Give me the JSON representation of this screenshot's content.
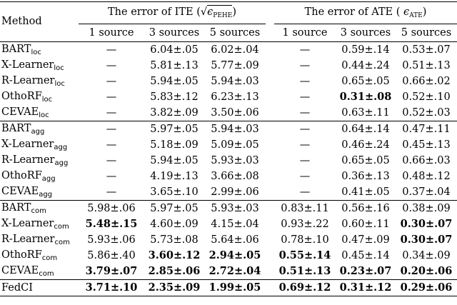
{
  "table": {
    "method_header": "Method",
    "ite_header_prefix": "The error of ITE (",
    "ite_header_sqrt": "√",
    "ite_header_eps": "ϵ",
    "ite_header_sub": "PEHE",
    "ite_header_suffix": ")",
    "ate_header_prefix": "The error of ATE (",
    "ate_header_eps": "ϵ",
    "ate_header_sub": "ATE",
    "ate_header_suffix": ")",
    "subcols": [
      "1 source",
      "3 sources",
      "5 sources",
      "1 source",
      "3 sources",
      "5 sources"
    ],
    "groups": [
      {
        "rows": [
          {
            "name": "BART",
            "sub": "loc",
            "cells": [
              "—",
              "6.04±.05",
              "6.02±.04",
              "—",
              "0.59±.14",
              "0.53±.07"
            ],
            "bold": [
              false,
              false,
              false,
              false,
              false,
              false
            ]
          },
          {
            "name": "X-Learner",
            "sub": "loc",
            "cells": [
              "—",
              "5.81±.13",
              "5.77±.09",
              "—",
              "0.44±.24",
              "0.51±.13"
            ],
            "bold": [
              false,
              false,
              false,
              false,
              false,
              false
            ]
          },
          {
            "name": "R-Learner",
            "sub": "loc",
            "cells": [
              "—",
              "5.94±.05",
              "5.94±.03",
              "—",
              "0.65±.05",
              "0.66±.02"
            ],
            "bold": [
              false,
              false,
              false,
              false,
              false,
              false
            ]
          },
          {
            "name": "OthoRF",
            "sub": "loc",
            "cells": [
              "—",
              "5.83±.12",
              "6.23±.13",
              "—",
              "0.31±.08",
              "0.52±.10"
            ],
            "bold": [
              false,
              false,
              false,
              false,
              true,
              false
            ]
          },
          {
            "name": "CEVAE",
            "sub": "loc",
            "cells": [
              "—",
              "3.82±.09",
              "3.50±.06",
              "—",
              "0.63±.11",
              "0.52±.03"
            ],
            "bold": [
              false,
              false,
              false,
              false,
              false,
              false
            ]
          }
        ]
      },
      {
        "rows": [
          {
            "name": "BART",
            "sub": "agg",
            "cells": [
              "—",
              "5.97±.05",
              "5.94±.03",
              "—",
              "0.64±.14",
              "0.47±.11"
            ],
            "bold": [
              false,
              false,
              false,
              false,
              false,
              false
            ]
          },
          {
            "name": "X-Learner",
            "sub": "agg",
            "cells": [
              "—",
              "5.18±.09",
              "5.09±.05",
              "—",
              "0.46±.24",
              "0.45±.13"
            ],
            "bold": [
              false,
              false,
              false,
              false,
              false,
              false
            ]
          },
          {
            "name": "R-Learner",
            "sub": "agg",
            "cells": [
              "—",
              "5.94±.05",
              "5.93±.03",
              "—",
              "0.65±.05",
              "0.66±.03"
            ],
            "bold": [
              false,
              false,
              false,
              false,
              false,
              false
            ]
          },
          {
            "name": "OthoRF",
            "sub": "agg",
            "cells": [
              "—",
              "4.19±.13",
              "3.66±.08",
              "—",
              "0.36±.13",
              "0.48±.12"
            ],
            "bold": [
              false,
              false,
              false,
              false,
              false,
              false
            ]
          },
          {
            "name": "CEVAE",
            "sub": "agg",
            "cells": [
              "—",
              "3.65±.10",
              "2.99±.06",
              "—",
              "0.41±.05",
              "0.37±.04"
            ],
            "bold": [
              false,
              false,
              false,
              false,
              false,
              false
            ]
          }
        ]
      },
      {
        "rows": [
          {
            "name": "BART",
            "sub": "com",
            "cells": [
              "5.98±.06",
              "5.97±.05",
              "5.93±.03",
              "0.83±.11",
              "0.56±.16",
              "0.38±.09"
            ],
            "bold": [
              false,
              false,
              false,
              false,
              false,
              false
            ]
          },
          {
            "name": "X-Learner",
            "sub": "com",
            "cells": [
              "5.48±.15",
              "4.60±.09",
              "4.15±.04",
              "0.93±.22",
              "0.60±.11",
              "0.30±.07"
            ],
            "bold": [
              true,
              false,
              false,
              false,
              false,
              true
            ]
          },
          {
            "name": "R-Learner",
            "sub": "com",
            "cells": [
              "5.93±.06",
              "5.73±.08",
              "5.64±.06",
              "0.78±.10",
              "0.47±.09",
              "0.30±.07"
            ],
            "bold": [
              false,
              false,
              false,
              false,
              false,
              true
            ]
          },
          {
            "name": "OthoRF",
            "sub": "com",
            "cells": [
              "5.86±.40",
              "3.60±.12",
              "2.94±.05",
              "0.55±.14",
              "0.45±.14",
              "0.34±.09"
            ],
            "bold": [
              false,
              true,
              true,
              true,
              false,
              false
            ]
          },
          {
            "name": "CEVAE",
            "sub": "com",
            "cells": [
              "3.79±.07",
              "2.85±.06",
              "2.72±.04",
              "0.51±.13",
              "0.23±.07",
              "0.20±.06"
            ],
            "bold": [
              true,
              true,
              true,
              true,
              true,
              true
            ]
          }
        ]
      },
      {
        "rows": [
          {
            "name": "FedCI",
            "sub": "",
            "cells": [
              "3.71±.10",
              "2.35±.09",
              "1.99±.05",
              "0.69±.12",
              "0.31±.12",
              "0.29±.06"
            ],
            "bold": [
              true,
              true,
              true,
              true,
              true,
              true
            ]
          }
        ]
      }
    ]
  }
}
